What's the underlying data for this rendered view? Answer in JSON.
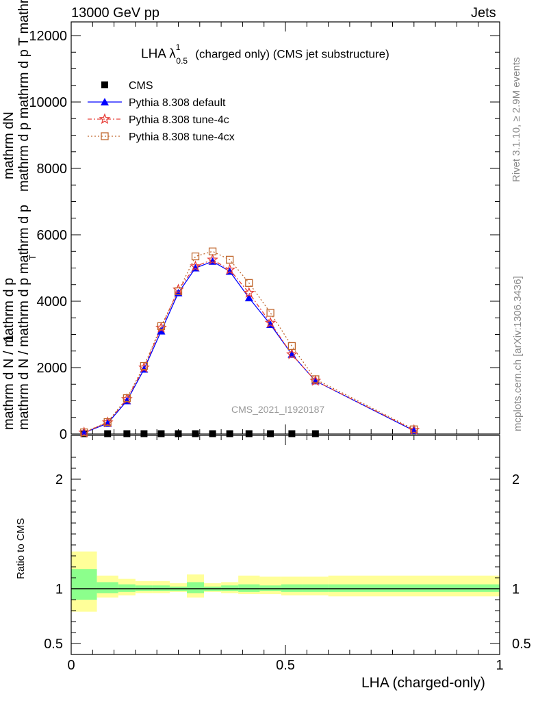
{
  "header": {
    "left": "13000 GeV pp",
    "right": "Jets"
  },
  "side_labels": {
    "rivet": "Rivet 3.1.10, ≥ 2.9M events",
    "mcplots": "mcplots.cern.ch [arXiv:1306.3436]"
  },
  "colors": {
    "data": "#000000",
    "default": "#0000ff",
    "tune4c": "#e8403a",
    "tune4cx": "#c0672e",
    "band_inner": "#8cff8c",
    "band_outer": "#ffff99",
    "watermark": "#999999"
  },
  "chart_data": {
    "type": "line",
    "title": "LHA λ",
    "title_sup": "1",
    "title_sub": "0.5",
    "title_rest": "(charged only) (CMS jet substructure)",
    "watermark": "CMS_2021_I1920187",
    "ylabel_line1": "mathrm dN",
    "ylabel_line2": "mathrm d p mathrm d p T mathrm d lambda",
    "ylabel_frac_top": "1",
    "ylabel_frac_bottom": "mathrm d N / mathrm d p mathrm d p",
    "ylabel_frac_bottom2": "mathrm d N / mathrm d p",
    "ylabel_sub": "T",
    "xlabel": "LHA (charged-only)",
    "ratio_ylabel": "Ratio to CMS",
    "xlim": [
      0,
      1
    ],
    "ylim": [
      0,
      12000
    ],
    "yticks": [
      0,
      2000,
      4000,
      6000,
      8000,
      10000,
      12000
    ],
    "ytick_labels": [
      "0",
      "2000",
      "4000",
      "6000",
      "8000",
      "10000",
      "12000"
    ],
    "xticks": [
      0,
      0.5,
      1
    ],
    "xtick_labels": [
      "0",
      "0.5",
      "1"
    ],
    "ratio_ylim": [
      0.4,
      2.4
    ],
    "ratio_yticks": [
      0.5,
      1,
      2
    ],
    "ratio_ytick_labels": [
      "0.5",
      "1",
      "2"
    ],
    "x": [
      0.03,
      0.085,
      0.13,
      0.17,
      0.21,
      0.25,
      0.29,
      0.33,
      0.37,
      0.415,
      0.465,
      0.515,
      0.57,
      0.8
    ],
    "series": [
      {
        "name": "CMS",
        "marker": "square",
        "values": [
          10,
          10,
          10,
          10,
          10,
          10,
          10,
          10,
          10,
          10,
          10,
          10,
          10,
          null
        ]
      },
      {
        "name": "Pythia 8.308 default",
        "marker": "triangle",
        "values": [
          40,
          320,
          1000,
          1950,
          3100,
          4250,
          5000,
          5200,
          4900,
          4100,
          3300,
          2400,
          1600,
          100
        ]
      },
      {
        "name": "Pythia 8.308 tune-4c",
        "marker": "star",
        "values": [
          45,
          350,
          1050,
          2000,
          3200,
          4350,
          5050,
          5250,
          4950,
          4250,
          3350,
          2400,
          1600,
          120
        ]
      },
      {
        "name": "Pythia 8.308 tune-4cx",
        "marker": "open-square",
        "values": [
          50,
          360,
          1080,
          2050,
          3250,
          4300,
          5350,
          5500,
          5250,
          4550,
          3650,
          2650,
          1650,
          140
        ]
      }
    ],
    "ratio_bins": [
      {
        "x0": 0.0,
        "x1": 0.06,
        "inner": [
          0.9,
          1.18
        ],
        "outer": [
          0.79,
          1.34
        ]
      },
      {
        "x0": 0.06,
        "x1": 0.11,
        "inner": [
          0.96,
          1.06
        ],
        "outer": [
          0.92,
          1.12
        ]
      },
      {
        "x0": 0.11,
        "x1": 0.15,
        "inner": [
          0.97,
          1.04
        ],
        "outer": [
          0.94,
          1.09
        ]
      },
      {
        "x0": 0.15,
        "x1": 0.19,
        "inner": [
          0.98,
          1.03
        ],
        "outer": [
          0.96,
          1.07
        ]
      },
      {
        "x0": 0.19,
        "x1": 0.23,
        "inner": [
          0.98,
          1.03
        ],
        "outer": [
          0.96,
          1.07
        ]
      },
      {
        "x0": 0.23,
        "x1": 0.27,
        "inner": [
          0.98,
          1.02
        ],
        "outer": [
          0.97,
          1.05
        ]
      },
      {
        "x0": 0.27,
        "x1": 0.31,
        "inner": [
          0.96,
          1.06
        ],
        "outer": [
          0.92,
          1.13
        ]
      },
      {
        "x0": 0.31,
        "x1": 0.35,
        "inner": [
          0.98,
          1.02
        ],
        "outer": [
          0.97,
          1.05
        ]
      },
      {
        "x0": 0.35,
        "x1": 0.39,
        "inner": [
          0.98,
          1.03
        ],
        "outer": [
          0.96,
          1.06
        ]
      },
      {
        "x0": 0.39,
        "x1": 0.44,
        "inner": [
          0.97,
          1.04
        ],
        "outer": [
          0.95,
          1.12
        ]
      },
      {
        "x0": 0.44,
        "x1": 0.49,
        "inner": [
          0.98,
          1.03
        ],
        "outer": [
          0.95,
          1.11
        ]
      },
      {
        "x0": 0.49,
        "x1": 0.54,
        "inner": [
          0.97,
          1.04
        ],
        "outer": [
          0.94,
          1.11
        ]
      },
      {
        "x0": 0.54,
        "x1": 0.6,
        "inner": [
          0.97,
          1.04
        ],
        "outer": [
          0.94,
          1.11
        ]
      },
      {
        "x0": 0.6,
        "x1": 1.0,
        "inner": [
          0.97,
          1.04
        ],
        "outer": [
          0.93,
          1.12
        ]
      }
    ]
  }
}
